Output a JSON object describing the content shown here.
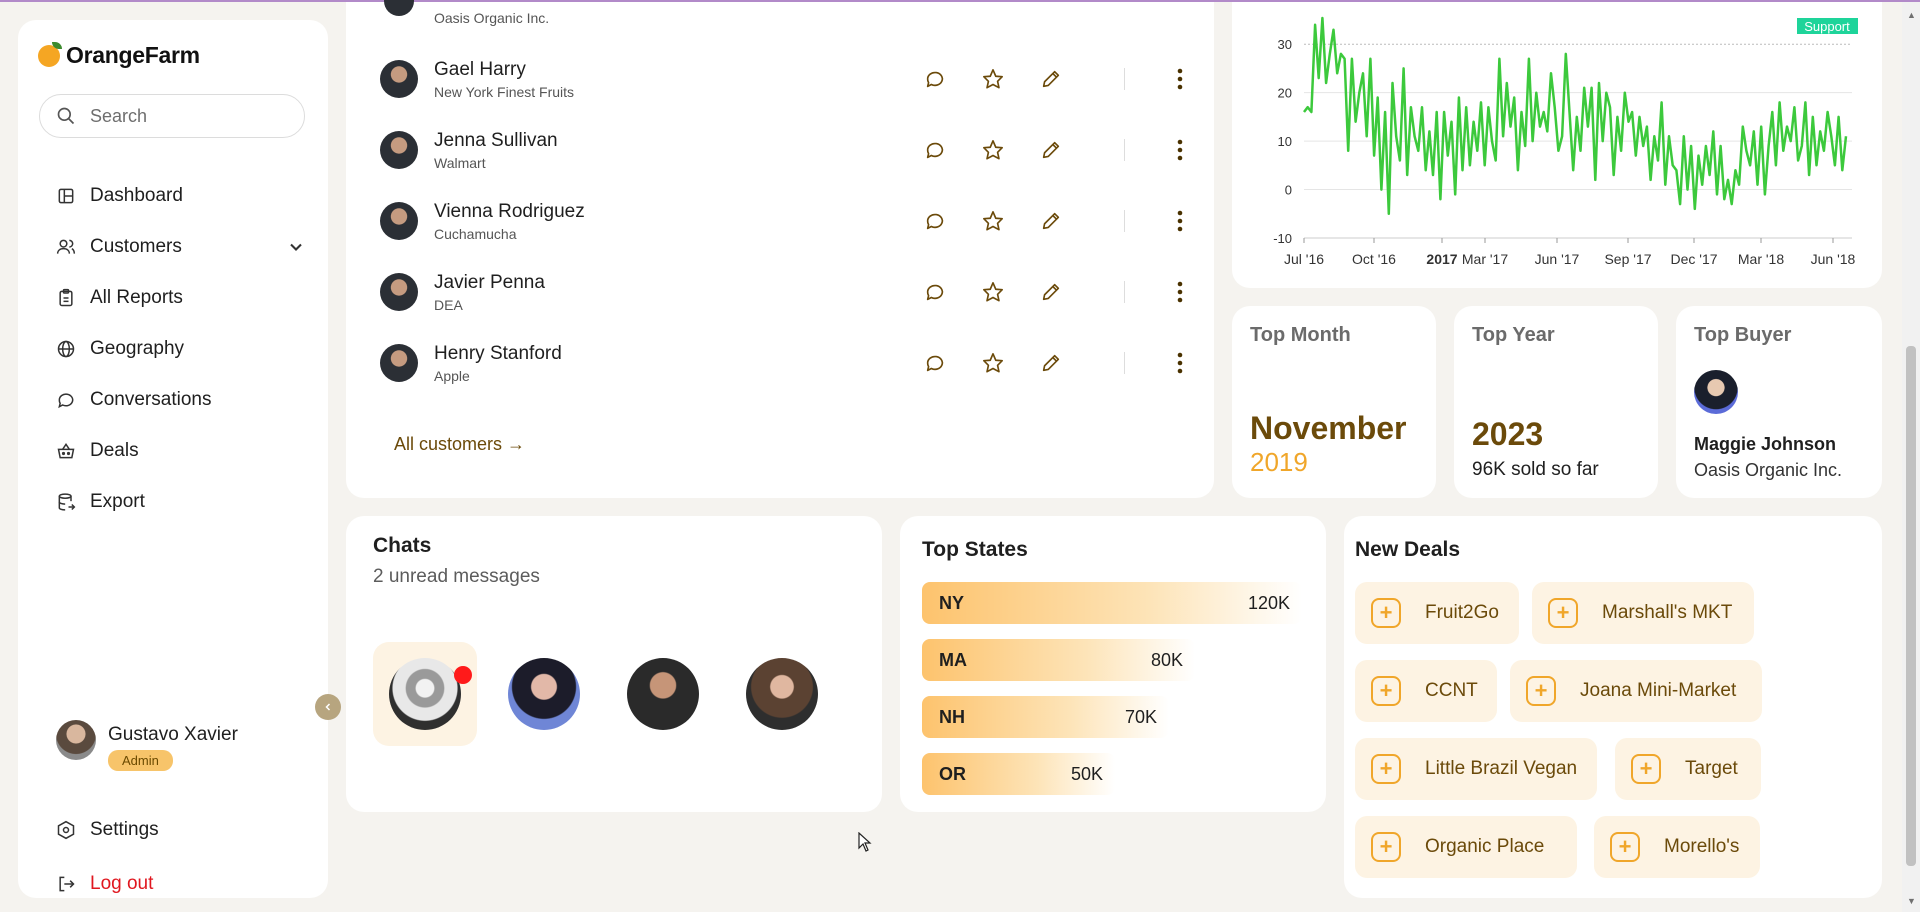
{
  "app": {
    "name": "OrangeFarm"
  },
  "search": {
    "placeholder": "Search"
  },
  "nav": {
    "dashboard": "Dashboard",
    "customers": "Customers",
    "all_reports": "All Reports",
    "geography": "Geography",
    "conversations": "Conversations",
    "deals": "Deals",
    "export": "Export"
  },
  "user": {
    "name": "Gustavo Xavier",
    "role": "Admin"
  },
  "settings": "Settings",
  "logout": "Log out",
  "customers": {
    "partial_company": "Oasis Organic Inc.",
    "rows": [
      {
        "name": "Gael Harry",
        "company": "New York Finest Fruits"
      },
      {
        "name": "Jenna Sullivan",
        "company": "Walmart"
      },
      {
        "name": "Vienna Rodriguez",
        "company": "Cuchamucha"
      },
      {
        "name": "Javier Penna",
        "company": "DEA"
      },
      {
        "name": "Henry Stanford",
        "company": "Apple"
      }
    ],
    "all_link": "All customers →"
  },
  "chart_data": {
    "type": "line",
    "annotation": "Support",
    "yticks": [
      "30",
      "20",
      "10",
      "0",
      "-10"
    ],
    "xticks": [
      "Jul '16",
      "Oct '16",
      "2017",
      "Mar '17",
      "Jun '17",
      "Sep '17",
      "Dec '17",
      "Mar '18",
      "Jun '18"
    ],
    "ylim": [
      -10,
      35
    ],
    "line_color": "#3cc93c",
    "series": [
      {
        "values": [
          16,
          17,
          16,
          34,
          23,
          40,
          22,
          28,
          33,
          24,
          28,
          27,
          8,
          27,
          14,
          20,
          24,
          11,
          27,
          7,
          19,
          0,
          16,
          -5,
          22,
          11,
          6,
          25,
          3,
          17,
          11,
          8,
          17,
          4,
          12,
          3,
          16,
          -2,
          16,
          7,
          14,
          -1,
          19,
          4,
          17,
          5,
          14,
          8,
          18,
          5,
          17,
          10,
          6,
          27,
          11,
          22,
          13,
          19,
          4,
          16,
          9,
          27,
          10,
          20,
          13,
          16,
          12,
          24,
          17,
          8,
          11,
          28,
          16,
          4,
          15,
          8,
          21,
          13,
          21,
          2,
          22,
          10,
          20,
          17,
          3,
          15,
          8,
          20,
          14,
          16,
          7,
          15,
          9,
          13,
          2,
          11,
          6,
          18,
          1,
          11,
          5,
          4,
          -3,
          11,
          0,
          9,
          -4,
          7,
          1,
          9,
          3,
          12,
          -1,
          9,
          -2,
          2,
          -3,
          4,
          1,
          13,
          8,
          5,
          12,
          1,
          13,
          -1,
          9,
          16,
          5,
          18,
          8,
          13,
          10,
          17,
          6,
          9,
          18,
          3,
          15,
          5,
          12,
          8,
          16,
          11,
          5,
          15,
          4,
          11
        ]
      }
    ]
  },
  "stats": {
    "top_month": {
      "label": "Top Month",
      "value": "November",
      "sub": "2019"
    },
    "top_year": {
      "label": "Top Year",
      "value": "2023",
      "sub": "96K sold so far"
    },
    "top_buyer": {
      "label": "Top Buyer",
      "name": "Maggie Johnson",
      "company": "Oasis Organic Inc."
    }
  },
  "chats": {
    "title": "Chats",
    "subtitle": "2 unread messages"
  },
  "states": {
    "title": "Top States",
    "items": [
      {
        "code": "NY",
        "value": "120K",
        "frac": 1.0
      },
      {
        "code": "MA",
        "value": "80K",
        "frac": 0.667
      },
      {
        "code": "NH",
        "value": "70K",
        "frac": 0.583
      },
      {
        "code": "OR",
        "value": "50K",
        "frac": 0.417
      }
    ]
  },
  "deals": {
    "title": "New Deals",
    "items": [
      "Fruit2Go",
      "Marshall's MKT",
      "CCNT",
      "Joana Mini-Market",
      "Little Brazil Vegan",
      "Target",
      "Organic Place",
      "Morello's"
    ]
  }
}
